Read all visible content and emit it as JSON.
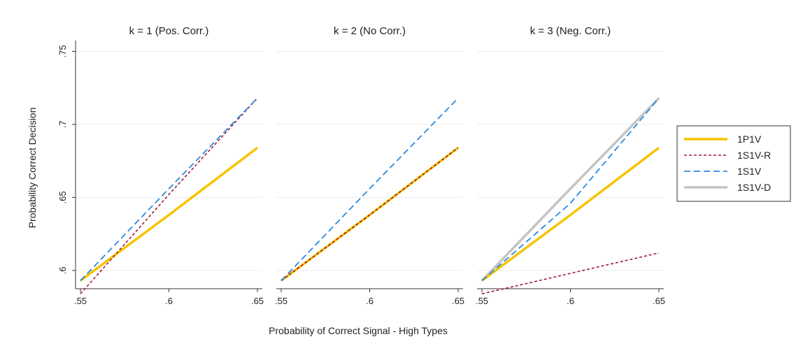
{
  "chart_data": {
    "type": "line",
    "xlabel": "Probability of Correct Signal - High Types",
    "ylabel": "Probability Correct Decision",
    "xlim": [
      0.55,
      0.65
    ],
    "ylim": [
      0.5875,
      0.755
    ],
    "x_ticks": [
      ".55",
      ".6",
      ".65"
    ],
    "y_ticks": [
      ".6",
      ".65",
      ".7",
      ".75"
    ],
    "grid": "horizontal",
    "legend_position": "right",
    "legend": [
      {
        "name": "1P1V",
        "color": "#F5C400",
        "style": "solid",
        "width": 3.5
      },
      {
        "name": "1S1V-R",
        "color": "#A0193C",
        "style": "dashed-short",
        "width": 1.6
      },
      {
        "name": "1S1V",
        "color": "#2A8AE0",
        "style": "dashed-long",
        "width": 1.8
      },
      {
        "name": "1S1V-D",
        "color": "#C4C4C4",
        "style": "solid",
        "width": 3.5
      }
    ],
    "panels": [
      {
        "title": "k = 1 (Pos. Corr.)",
        "series": [
          {
            "name": "1P1V",
            "x": [
              0.55,
              0.6,
              0.65
            ],
            "y": [
              0.593,
              0.638,
              0.684
            ]
          },
          {
            "name": "1S1V-R",
            "x": [
              0.55,
              0.6,
              0.65
            ],
            "y": [
              0.584,
              0.652,
              0.718
            ]
          },
          {
            "name": "1S1V",
            "x": [
              0.55,
              0.6,
              0.65
            ],
            "y": [
              0.593,
              0.656,
              0.718
            ]
          }
        ]
      },
      {
        "title": "k = 2 (No Corr.)",
        "series": [
          {
            "name": "1P1V",
            "x": [
              0.55,
              0.6,
              0.65
            ],
            "y": [
              0.593,
              0.638,
              0.684
            ]
          },
          {
            "name": "1S1V-R",
            "x": [
              0.55,
              0.6,
              0.65
            ],
            "y": [
              0.593,
              0.638,
              0.684
            ]
          },
          {
            "name": "1S1V",
            "x": [
              0.55,
              0.6,
              0.65
            ],
            "y": [
              0.593,
              0.656,
              0.718
            ]
          }
        ]
      },
      {
        "title": "k = 3 (Neg. Corr.)",
        "series": [
          {
            "name": "1S1V-D",
            "x": [
              0.55,
              0.6,
              0.65
            ],
            "y": [
              0.593,
              0.656,
              0.718
            ]
          },
          {
            "name": "1P1V",
            "x": [
              0.55,
              0.6,
              0.65
            ],
            "y": [
              0.593,
              0.638,
              0.684
            ]
          },
          {
            "name": "1S1V-R",
            "x": [
              0.55,
              0.6,
              0.65
            ],
            "y": [
              0.584,
              0.598,
              0.612
            ]
          },
          {
            "name": "1S1V",
            "x": [
              0.55,
              0.6,
              0.65
            ],
            "y": [
              0.593,
              0.646,
              0.718
            ]
          }
        ]
      }
    ]
  }
}
